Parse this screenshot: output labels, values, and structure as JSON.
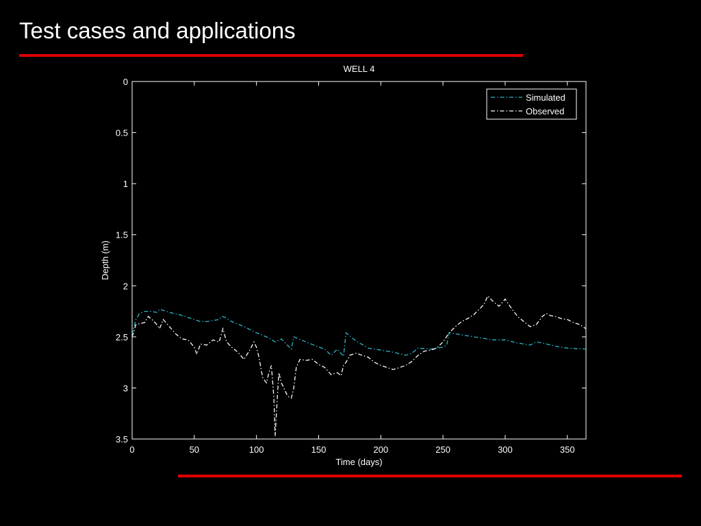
{
  "slide": {
    "title": "Test cases and applications",
    "accent_color": "#e00000"
  },
  "chart_data": {
    "type": "line",
    "title": "WELL 4",
    "xlabel": "Time (days)",
    "ylabel": "Depth (m)",
    "xlim": [
      0,
      365
    ],
    "ylim": [
      0,
      3.5
    ],
    "y_reversed": true,
    "grid": false,
    "legend_position": "top-right",
    "x_ticks": [
      0,
      50,
      100,
      150,
      200,
      250,
      300,
      350
    ],
    "y_ticks": [
      0,
      0.5,
      1,
      1.5,
      2,
      2.5,
      3,
      3.5
    ],
    "x_tick_labels": [
      "0",
      "50",
      "100",
      "150",
      "200",
      "250",
      "300",
      "350"
    ],
    "y_tick_labels": [
      "0",
      "0.5",
      "1",
      "1.5",
      "2",
      "2.5",
      "3",
      "3.5"
    ],
    "series": [
      {
        "name": "Simulated",
        "color": "#2ab7c9",
        "dash": "dash-dot",
        "x": [
          0,
          3,
          6,
          10,
          15,
          20,
          22,
          25,
          30,
          40,
          50,
          55,
          60,
          65,
          70,
          72,
          75,
          80,
          90,
          100,
          110,
          115,
          120,
          124,
          128,
          130,
          140,
          150,
          155,
          160,
          165,
          170,
          172,
          175,
          180,
          190,
          200,
          210,
          220,
          225,
          230,
          240,
          250,
          253,
          255,
          260,
          270,
          280,
          290,
          300,
          310,
          320,
          325,
          330,
          340,
          350,
          365
        ],
        "y": [
          2.48,
          2.33,
          2.27,
          2.25,
          2.25,
          2.26,
          2.23,
          2.24,
          2.26,
          2.29,
          2.33,
          2.35,
          2.35,
          2.34,
          2.33,
          2.3,
          2.31,
          2.35,
          2.4,
          2.46,
          2.51,
          2.55,
          2.52,
          2.57,
          2.62,
          2.5,
          2.55,
          2.6,
          2.62,
          2.68,
          2.62,
          2.69,
          2.46,
          2.49,
          2.54,
          2.61,
          2.63,
          2.65,
          2.68,
          2.66,
          2.61,
          2.62,
          2.6,
          2.58,
          2.46,
          2.47,
          2.49,
          2.51,
          2.53,
          2.53,
          2.56,
          2.58,
          2.55,
          2.56,
          2.59,
          2.61,
          2.62
        ]
      },
      {
        "name": "Observed",
        "color": "#ffffff",
        "dash": "dash-dot",
        "x": [
          0,
          3,
          6,
          10,
          13,
          16,
          20,
          22,
          25,
          30,
          35,
          40,
          45,
          50,
          52,
          55,
          60,
          65,
          70,
          73,
          76,
          80,
          85,
          90,
          95,
          98,
          100,
          102,
          105,
          108,
          110,
          112,
          114,
          115,
          117,
          118,
          120,
          122,
          125,
          128,
          130,
          132,
          135,
          140,
          145,
          150,
          155,
          160,
          165,
          168,
          170,
          172,
          175,
          180,
          185,
          190,
          195,
          200,
          205,
          210,
          215,
          220,
          225,
          230,
          235,
          240,
          245,
          250,
          255,
          260,
          265,
          270,
          275,
          280,
          283,
          286,
          290,
          295,
          298,
          300,
          305,
          310,
          315,
          320,
          325,
          330,
          333,
          336,
          340,
          345,
          350,
          355,
          360,
          365
        ],
        "y": [
          2.5,
          2.38,
          2.37,
          2.36,
          2.3,
          2.33,
          2.38,
          2.42,
          2.33,
          2.4,
          2.47,
          2.52,
          2.53,
          2.6,
          2.67,
          2.57,
          2.58,
          2.53,
          2.55,
          2.42,
          2.55,
          2.6,
          2.65,
          2.72,
          2.62,
          2.55,
          2.6,
          2.7,
          2.9,
          2.95,
          2.85,
          2.78,
          3.1,
          3.47,
          3.05,
          2.85,
          2.95,
          3.0,
          3.08,
          3.1,
          3.0,
          2.8,
          2.72,
          2.73,
          2.72,
          2.77,
          2.8,
          2.87,
          2.85,
          2.88,
          2.78,
          2.75,
          2.68,
          2.66,
          2.68,
          2.7,
          2.75,
          2.78,
          2.8,
          2.82,
          2.8,
          2.78,
          2.74,
          2.68,
          2.64,
          2.63,
          2.61,
          2.55,
          2.46,
          2.4,
          2.35,
          2.32,
          2.28,
          2.22,
          2.18,
          2.1,
          2.15,
          2.2,
          2.16,
          2.13,
          2.22,
          2.3,
          2.35,
          2.4,
          2.38,
          2.3,
          2.27,
          2.29,
          2.3,
          2.32,
          2.33,
          2.36,
          2.38,
          2.42
        ]
      }
    ]
  }
}
